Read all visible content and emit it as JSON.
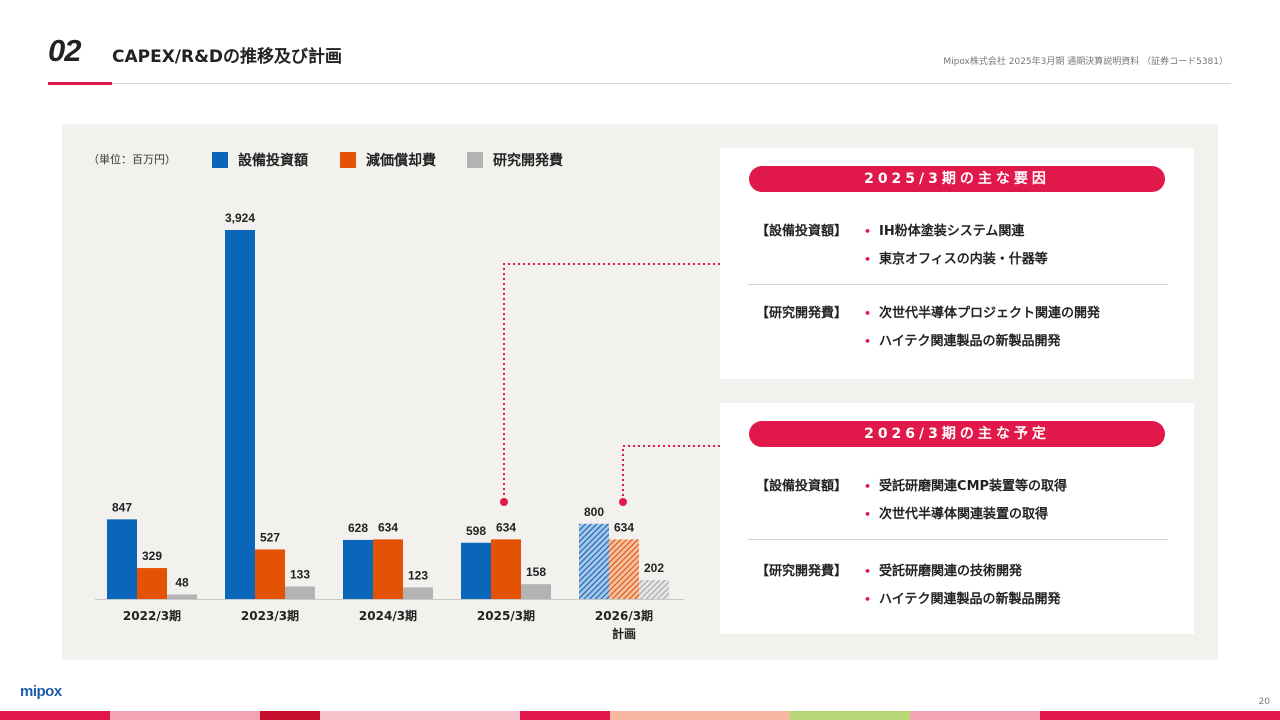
{
  "header": {
    "section_number": "02",
    "title": "CAPEX/R&Dの推移及び計画",
    "company_info": "Mipox株式会社 2025年3月期 通期決算説明資料 （証券コード5381）"
  },
  "chart_data": {
    "type": "bar",
    "unit_label": "（単位：百万円）",
    "categories": [
      "2022/3期",
      "2023/3期",
      "2024/3期",
      "2025/3期",
      "2026/3期\n計画"
    ],
    "series": [
      {
        "name": "設備投資額",
        "values": [
          847,
          3924,
          628,
          598,
          800
        ],
        "color": "#0a66b8"
      },
      {
        "name": "減価償却費",
        "values": [
          329,
          527,
          634,
          634,
          634
        ],
        "color": "#e35205"
      },
      {
        "name": "研究開発費",
        "values": [
          48,
          133,
          123,
          158,
          202
        ],
        "color": "#b3b3b3"
      }
    ],
    "value_labels": [
      [
        "847",
        "3,924",
        "628",
        "598",
        "800"
      ],
      [
        "329",
        "527",
        "634",
        "634",
        "634"
      ],
      [
        "48",
        "133",
        "123",
        "158",
        "202"
      ]
    ],
    "planned_category_index": 4,
    "ylim": [
      0,
      4000
    ],
    "legend_position": "top-left",
    "grid": false
  },
  "cards": [
    {
      "title": "2025/3期の主な要因",
      "groups": [
        {
          "category": "【設備投資額】",
          "items": [
            "IH粉体塗装システム関連",
            "東京オフィスの内装・什器等"
          ]
        },
        {
          "category": "【研究開発費】",
          "items": [
            "次世代半導体プロジェクト関連の開発",
            "ハイテク関連製品の新製品開発"
          ]
        }
      ]
    },
    {
      "title": "2026/3期の主な予定",
      "groups": [
        {
          "category": "【設備投資額】",
          "items": [
            "受託研磨関連CMP装置等の取得",
            "次世代半導体関連装置の取得"
          ]
        },
        {
          "category": "【研究開発費】",
          "items": [
            "受託研磨関連の技術開発",
            "ハイテク関連製品の新製品開発"
          ]
        }
      ]
    }
  ],
  "bullet_glyph": "•",
  "accent_color": "#e0194a",
  "footer": {
    "logo": "mipox",
    "page_number": "20"
  }
}
